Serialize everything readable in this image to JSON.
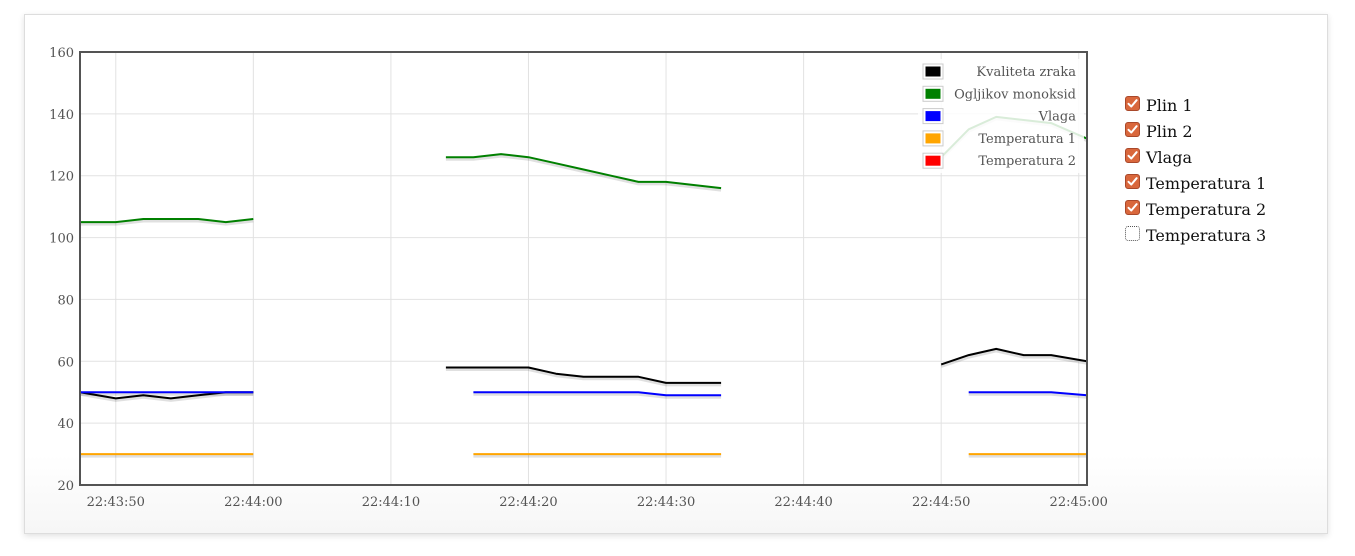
{
  "chart_data": {
    "type": "line",
    "x_tick_labels": [
      "22:43:50",
      "22:44:00",
      "22:44:10",
      "22:44:20",
      "22:44:30",
      "22:44:40",
      "22:44:50",
      "22:45:00"
    ],
    "x_tick_seconds": [
      50,
      60,
      70,
      80,
      90,
      100,
      110,
      120
    ],
    "xlim_seconds": [
      47.4,
      120.6
    ],
    "ylim": [
      20,
      160
    ],
    "y_ticks": [
      20,
      40,
      60,
      80,
      100,
      120,
      140,
      160
    ],
    "grid": true,
    "legend_position": "top-right",
    "series": [
      {
        "name": "Kvaliteta zraka",
        "color": "#000000",
        "segments": [
          {
            "x": [
              47.4,
              50,
              52,
              54,
              56,
              58,
              60
            ],
            "y": [
              50,
              48,
              49,
              48,
              49,
              50,
              50
            ]
          },
          {
            "x": [
              74,
              76,
              78,
              80,
              82,
              84,
              86,
              88,
              90,
              92,
              94
            ],
            "y": [
              58,
              58,
              58,
              58,
              56,
              55,
              55,
              55,
              53,
              53,
              53
            ]
          },
          {
            "x": [
              110,
              112,
              114,
              116,
              118,
              120.6
            ],
            "y": [
              59,
              62,
              64,
              62,
              62,
              60
            ]
          }
        ]
      },
      {
        "name": "Ogljikov monoksid",
        "color": "#008000",
        "segments": [
          {
            "x": [
              47.4,
              50,
              52,
              54,
              56,
              58,
              60
            ],
            "y": [
              105,
              105,
              106,
              106,
              106,
              105,
              106
            ]
          },
          {
            "x": [
              74,
              76,
              78,
              80,
              82,
              84,
              86,
              88,
              90,
              92,
              94
            ],
            "y": [
              126,
              126,
              127,
              126,
              124,
              122,
              120,
              118,
              118,
              117,
              116
            ]
          },
          {
            "x": [
              110,
              112,
              114,
              116,
              118,
              120.6
            ],
            "y": [
              126,
              135,
              139,
              138,
              137,
              132
            ]
          }
        ]
      },
      {
        "name": "Vlaga",
        "color": "#0000ff",
        "segments": [
          {
            "x": [
              47.4,
              50,
              52,
              54,
              56,
              58,
              60
            ],
            "y": [
              50,
              50,
              50,
              50,
              50,
              50,
              50
            ]
          },
          {
            "x": [
              76,
              78,
              80,
              82,
              84,
              86,
              88,
              90,
              92,
              94
            ],
            "y": [
              50,
              50,
              50,
              50,
              50,
              50,
              50,
              49,
              49,
              49
            ]
          },
          {
            "x": [
              112,
              114,
              116,
              118,
              120.6
            ],
            "y": [
              50,
              50,
              50,
              50,
              49
            ]
          }
        ]
      },
      {
        "name": "Temperatura 1",
        "color": "#ffa500",
        "segments": [
          {
            "x": [
              47.4,
              50,
              52,
              54,
              56,
              58,
              60
            ],
            "y": [
              30,
              30,
              30,
              30,
              30,
              30,
              30
            ]
          },
          {
            "x": [
              76,
              78,
              80,
              82,
              84,
              86,
              88,
              90,
              92,
              94
            ],
            "y": [
              30,
              30,
              30,
              30,
              30,
              30,
              30,
              30,
              30,
              30
            ]
          },
          {
            "x": [
              112,
              114,
              116,
              118,
              120.6
            ],
            "y": [
              30,
              30,
              30,
              30,
              30
            ]
          }
        ]
      },
      {
        "name": "Temperatura 2",
        "color": "#ff0000",
        "segments": []
      }
    ]
  },
  "toggles": [
    {
      "label": "Plin 1",
      "checked": true
    },
    {
      "label": "Plin 2",
      "checked": true
    },
    {
      "label": "Vlaga",
      "checked": true
    },
    {
      "label": "Temperatura 1",
      "checked": true
    },
    {
      "label": "Temperatura 2",
      "checked": true
    },
    {
      "label": "Temperatura 3",
      "checked": false
    }
  ]
}
